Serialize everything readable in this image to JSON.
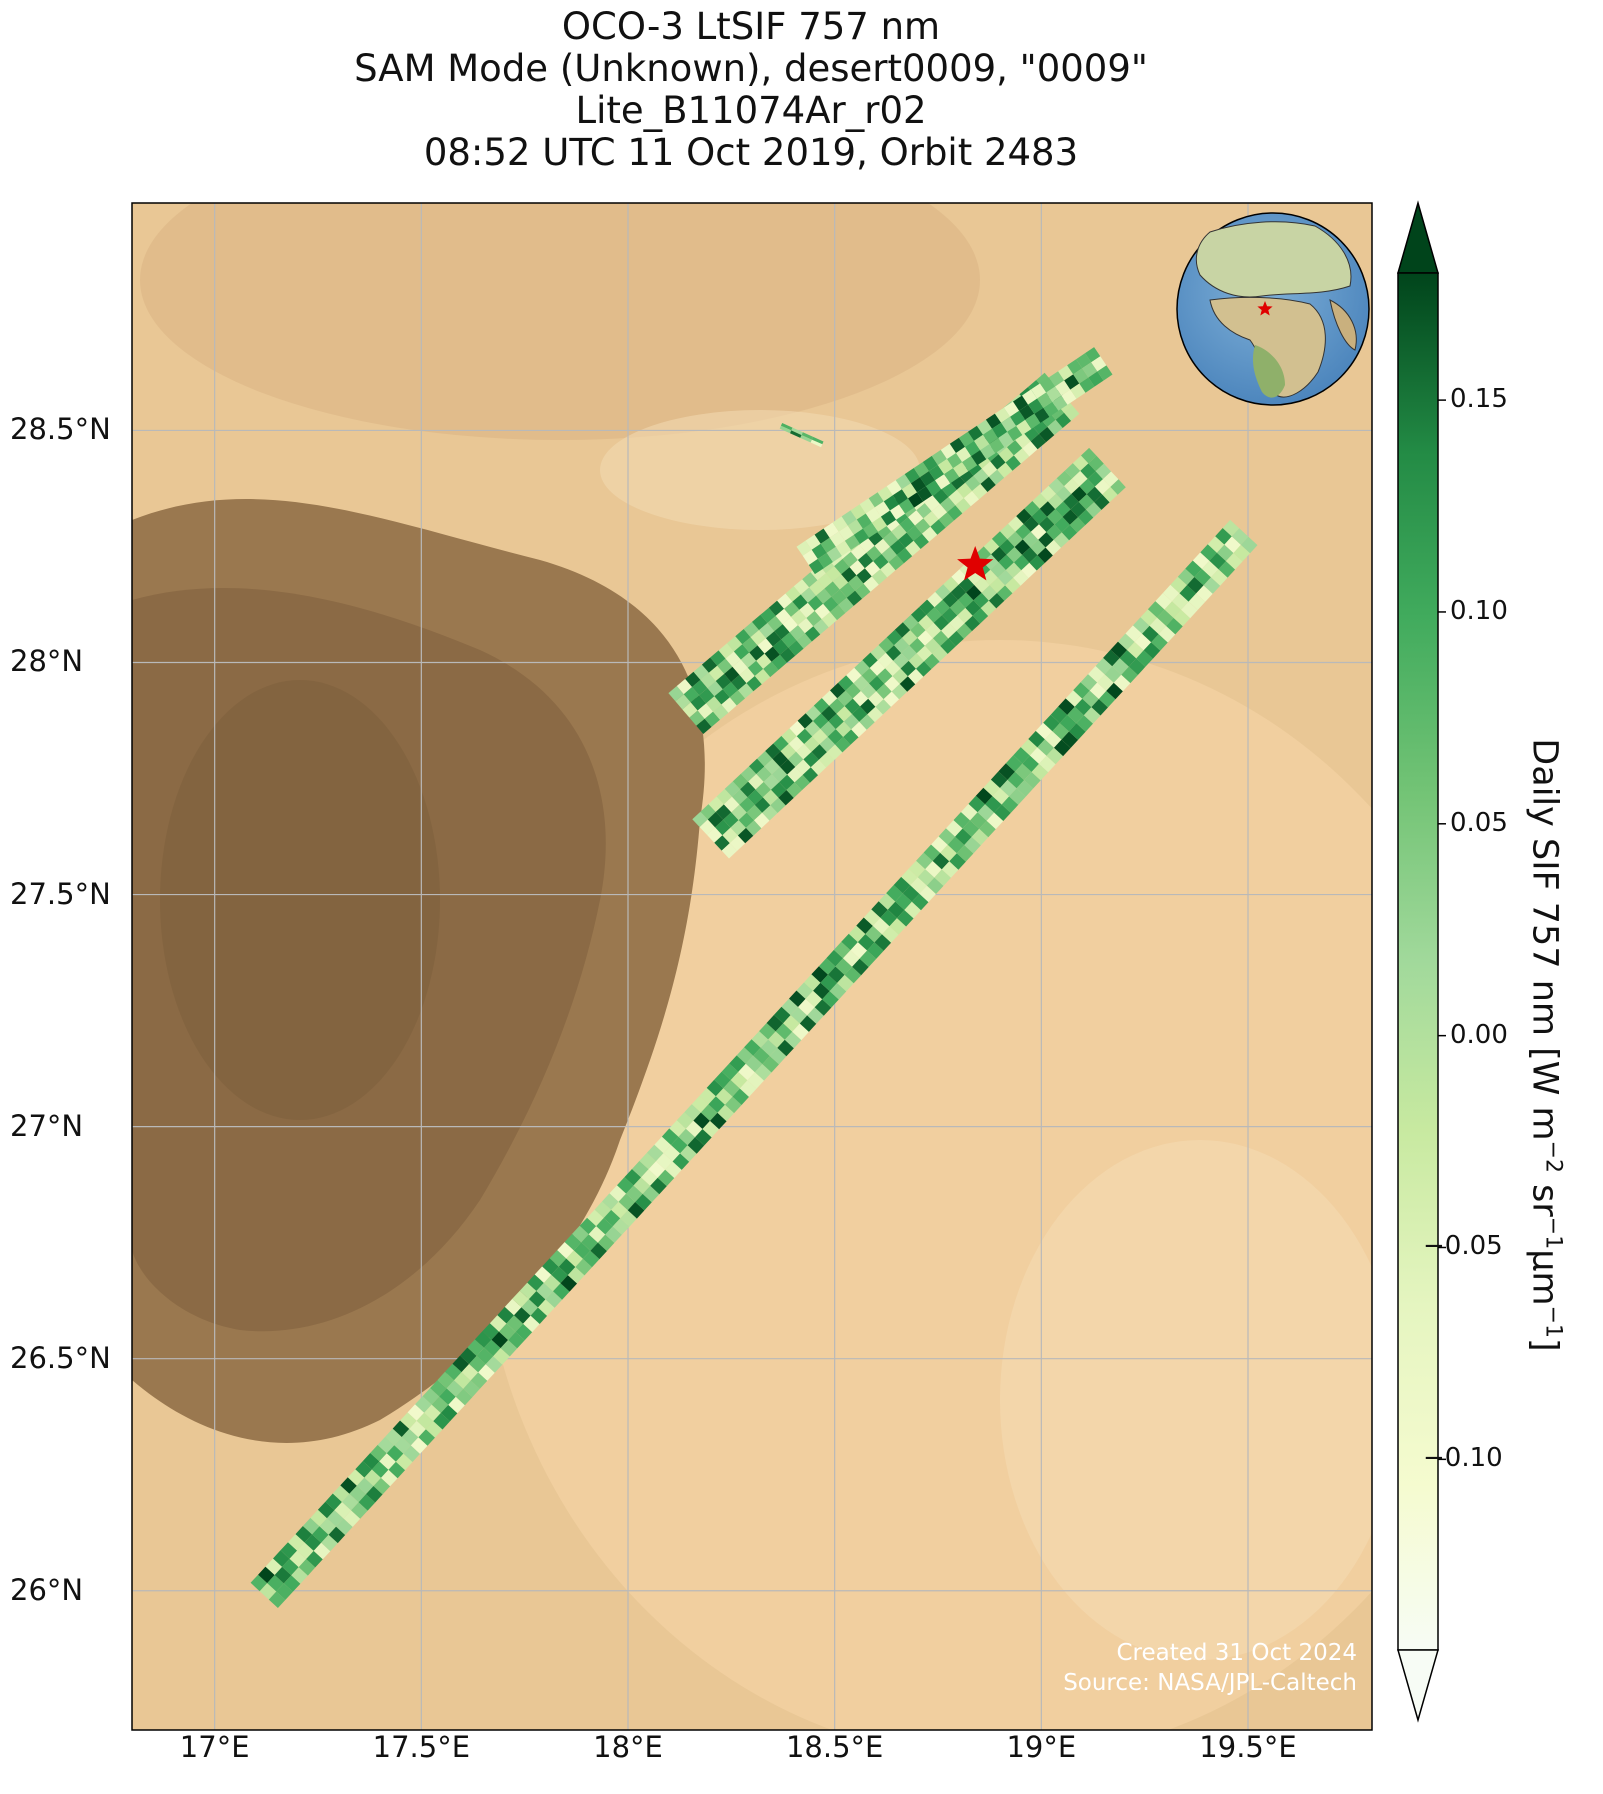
{
  "title": {
    "line1": "OCO-3 LtSIF 757 nm",
    "line2": "SAM Mode (Unknown), desert0009, \"0009\"",
    "line3": "Lite_B11074Ar_r02",
    "line4": "08:52 UTC 11 Oct 2019, Orbit 2483"
  },
  "chart_data": {
    "type": "map",
    "lon_range": [
      16.8,
      19.8
    ],
    "lat_range": [
      25.7,
      28.99
    ],
    "lon_ticks": [
      17.0,
      17.5,
      18.0,
      18.5,
      19.0,
      19.5
    ],
    "lon_tick_labels": [
      "17°E",
      "17.5°E",
      "18°E",
      "18.5°E",
      "19°E",
      "19.5°E"
    ],
    "lat_ticks": [
      26.0,
      26.5,
      27.0,
      27.5,
      28.0,
      28.5
    ],
    "lat_tick_labels": [
      "26°N",
      "26.5°N",
      "27°N",
      "27.5°N",
      "28°N",
      "28.5°N"
    ],
    "grid": true,
    "target_marker": {
      "lon": 18.84,
      "lat": 28.21,
      "symbol": "star",
      "color": "#e00000"
    },
    "swaths": [
      {
        "lon_start": 17.12,
        "lat_start": 25.99,
        "lon_end": 19.49,
        "lat_end": 28.28,
        "width_deg": 0.09
      },
      {
        "lon_start": 18.2,
        "lat_start": 27.62,
        "lon_end": 19.16,
        "lat_end": 28.42,
        "width_deg": 0.13
      },
      {
        "lon_start": 18.14,
        "lat_start": 27.89,
        "lon_end": 19.05,
        "lat_end": 28.58,
        "width_deg": 0.13
      },
      {
        "lon_start": 18.43,
        "lat_start": 28.22,
        "lon_end": 19.15,
        "lat_end": 28.65,
        "width_deg": 0.08
      },
      {
        "lon_start": 18.37,
        "lat_start": 28.51,
        "lon_end": 18.47,
        "lat_end": 28.47,
        "width_deg": 0.015
      }
    ],
    "colorbar": {
      "label_main": "Daily SIF 757 nm [W m",
      "label_exp1": "−2",
      "label_mid": " sr",
      "label_exp2": "−1",
      "label_unit": "μm",
      "label_exp3": "−1",
      "label_end": "]",
      "min": -0.145,
      "max": 0.18,
      "extend": "both",
      "ticks": [
        -0.1,
        -0.05,
        0.0,
        0.05,
        0.1,
        0.15
      ],
      "tick_labels": [
        "−0.10",
        "−0.05",
        "0.00",
        "0.05",
        "0.10",
        "0.15"
      ],
      "colormap": "Greens"
    },
    "inset_globe": {
      "marker": "star",
      "marker_color": "#e00000"
    }
  },
  "credits": {
    "created": "Created 31 Oct 2024",
    "source": "Source: NASA/JPL-Caltech"
  }
}
